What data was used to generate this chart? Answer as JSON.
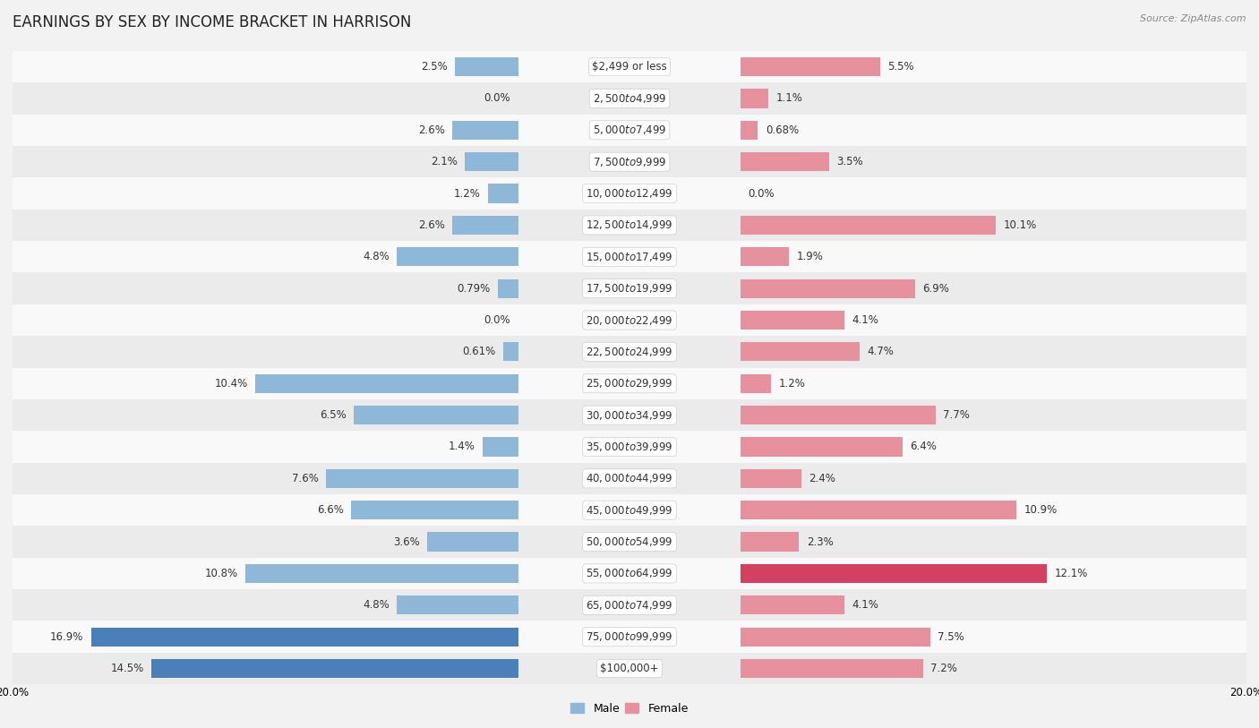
{
  "title": "EARNINGS BY SEX BY INCOME BRACKET IN HARRISON",
  "source": "Source: ZipAtlas.com",
  "categories": [
    "$2,499 or less",
    "$2,500 to $4,999",
    "$5,000 to $7,499",
    "$7,500 to $9,999",
    "$10,000 to $12,499",
    "$12,500 to $14,999",
    "$15,000 to $17,499",
    "$17,500 to $19,999",
    "$20,000 to $22,499",
    "$22,500 to $24,999",
    "$25,000 to $29,999",
    "$30,000 to $34,999",
    "$35,000 to $39,999",
    "$40,000 to $44,999",
    "$45,000 to $49,999",
    "$50,000 to $54,999",
    "$55,000 to $64,999",
    "$65,000 to $74,999",
    "$75,000 to $99,999",
    "$100,000+"
  ],
  "male_values": [
    2.5,
    0.0,
    2.6,
    2.1,
    1.2,
    2.6,
    4.8,
    0.79,
    0.0,
    0.61,
    10.4,
    6.5,
    1.4,
    7.6,
    6.6,
    3.6,
    10.8,
    4.8,
    16.9,
    14.5
  ],
  "female_values": [
    5.5,
    1.1,
    0.68,
    3.5,
    0.0,
    10.1,
    1.9,
    6.9,
    4.1,
    4.7,
    1.2,
    7.7,
    6.4,
    2.4,
    10.9,
    2.3,
    12.1,
    4.1,
    7.5,
    7.2
  ],
  "male_color": "#8fb8d8",
  "female_color": "#e8919e",
  "highlight_male_color": "#4a7fba",
  "highlight_female_color": "#d44060",
  "background_color": "#f2f2f2",
  "row_color_light": "#f9f9f9",
  "row_color_dark": "#ebebeb",
  "axis_limit": 20.0,
  "bar_height": 0.6,
  "title_fontsize": 12,
  "label_fontsize": 8.5,
  "category_fontsize": 8.5,
  "legend_fontsize": 9,
  "male_highlight_threshold": 14.0,
  "female_highlight_threshold": 12.0
}
